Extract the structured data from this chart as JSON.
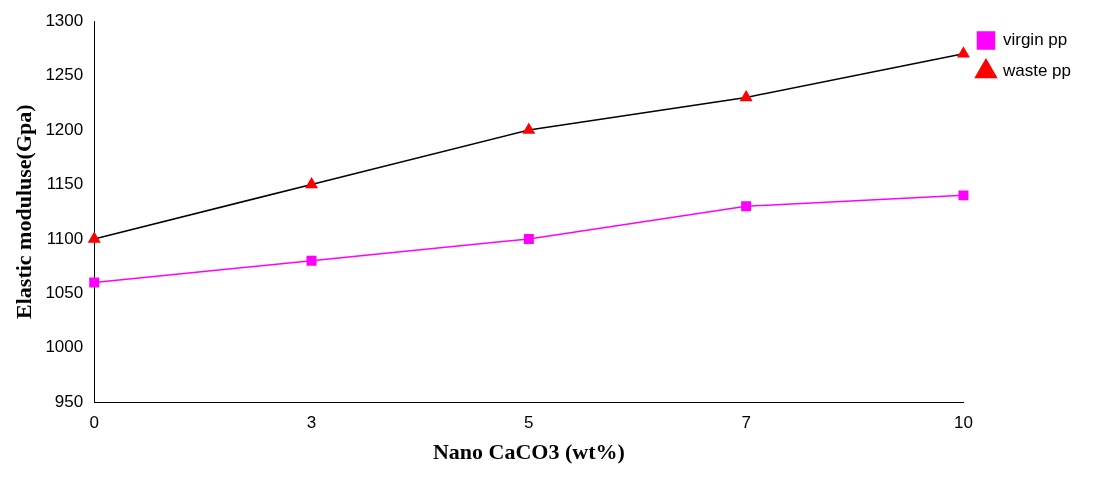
{
  "chart_data": {
    "type": "line",
    "xlabel": "Nano CaCO3 (wt%)",
    "ylabel": "Elastic moduluse(Gpa)",
    "categories": [
      "0",
      "3",
      "5",
      "7",
      "10"
    ],
    "series": [
      {
        "name": "virgin pp",
        "color": "#ff00ff",
        "marker": "square",
        "values": [
          1060,
          1080,
          1100,
          1130,
          1140
        ]
      },
      {
        "name": "waste pp",
        "color": "#000000",
        "marker": "triangle",
        "colors": [
          "#ff0000",
          "#ff0000",
          "#ff0000",
          "#ff0000",
          "#ff0000"
        ],
        "values": [
          1100,
          1150,
          1200,
          1230,
          1270
        ]
      }
    ],
    "ylim": [
      950,
      1300
    ],
    "yticks": [
      950,
      1000,
      1050,
      1100,
      1150,
      1200,
      1250,
      1300
    ],
    "grid": false,
    "legend": "right"
  }
}
